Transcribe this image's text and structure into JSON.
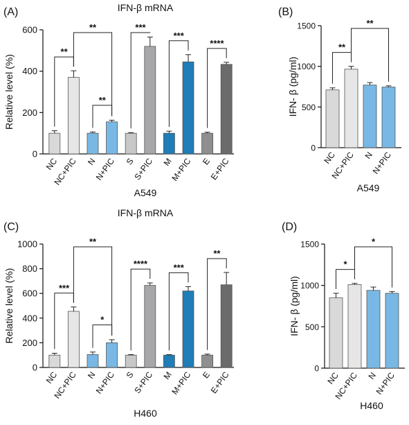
{
  "colors": {
    "NC": "#d9d9d9",
    "NC+PIC": "#e6e6e6",
    "N": "#79b8e4",
    "N+PIC": "#79b8e4",
    "S": "#c8c8c8",
    "S+PIC": "#a7a7aa",
    "M": "#1f7db8",
    "M+PIC": "#1f7db8",
    "E": "#8f8f8f",
    "E+PIC": "#6b6b6b",
    "axis": "#111111"
  },
  "chart_data": [
    {
      "id": "A",
      "panel_label": "(A)",
      "type": "bar",
      "title": "IFN-β mRNA",
      "ylabel": "Relative level (%)",
      "xlabel": "A549",
      "ylim": [
        0,
        600
      ],
      "yticks": [
        0,
        200,
        400,
        600
      ],
      "categories": [
        "NC",
        "NC+PIC",
        "N",
        "N+PIC",
        "S",
        "S+PIC",
        "M",
        "M+PIC",
        "E",
        "E+PIC"
      ],
      "values": [
        100,
        370,
        100,
        155,
        100,
        520,
        100,
        445,
        100,
        433
      ],
      "errors": [
        12,
        32,
        6,
        8,
        3,
        45,
        10,
        35,
        5,
        10
      ],
      "significance": [
        {
          "from": 0,
          "to": 1,
          "label": "**"
        },
        {
          "from": 1,
          "to": 3,
          "label": "**"
        },
        {
          "from": 2,
          "to": 3,
          "label": "**"
        },
        {
          "from": 4,
          "to": 5,
          "label": "***"
        },
        {
          "from": 6,
          "to": 7,
          "label": "***"
        },
        {
          "from": 8,
          "to": 9,
          "label": "****"
        }
      ]
    },
    {
      "id": "B",
      "panel_label": "(B)",
      "type": "bar",
      "title": "",
      "ylabel": "IFN- β (pg/ml)",
      "xlabel": "A549",
      "ylim": [
        0,
        1500
      ],
      "yticks": [
        0,
        500,
        1000,
        1500
      ],
      "categories": [
        "NC",
        "NC+PIC",
        "N",
        "N+PIC"
      ],
      "values": [
        710,
        965,
        770,
        745
      ],
      "errors": [
        25,
        35,
        30,
        15
      ],
      "significance": [
        {
          "from": 0,
          "to": 1,
          "label": "**"
        },
        {
          "from": 1,
          "to": 3,
          "label": "**"
        }
      ]
    },
    {
      "id": "C",
      "panel_label": "(C)",
      "type": "bar",
      "title": "IFN-β mRNA",
      "ylabel": "Relative level (%)",
      "xlabel": "H460",
      "ylim": [
        0,
        1000
      ],
      "yticks": [
        0,
        200,
        400,
        600,
        800,
        1000
      ],
      "categories": [
        "NC",
        "NC+PIC",
        "N",
        "N+PIC",
        "S",
        "S+PIC",
        "M",
        "M+PIC",
        "E",
        "E+PIC"
      ],
      "values": [
        100,
        455,
        105,
        200,
        100,
        665,
        100,
        620,
        100,
        670
      ],
      "errors": [
        15,
        35,
        20,
        25,
        4,
        20,
        4,
        35,
        8,
        100
      ],
      "significance": [
        {
          "from": 0,
          "to": 1,
          "label": "***"
        },
        {
          "from": 1,
          "to": 3,
          "label": "**"
        },
        {
          "from": 2,
          "to": 3,
          "label": "*"
        },
        {
          "from": 4,
          "to": 5,
          "label": "****"
        },
        {
          "from": 6,
          "to": 7,
          "label": "***"
        },
        {
          "from": 8,
          "to": 9,
          "label": "**"
        }
      ]
    },
    {
      "id": "D",
      "panel_label": "(D)",
      "type": "bar",
      "title": "",
      "ylabel": "IFN- β (pg/ml)",
      "xlabel": "H460",
      "ylim": [
        0,
        1500
      ],
      "yticks": [
        0,
        500,
        1000,
        1500
      ],
      "categories": [
        "NC",
        "NC+PIC",
        "N",
        "N+PIC"
      ],
      "values": [
        850,
        1010,
        940,
        905
      ],
      "errors": [
        55,
        15,
        40,
        20
      ],
      "significance": [
        {
          "from": 0,
          "to": 1,
          "label": "*"
        },
        {
          "from": 1,
          "to": 3,
          "label": "*"
        }
      ]
    }
  ]
}
